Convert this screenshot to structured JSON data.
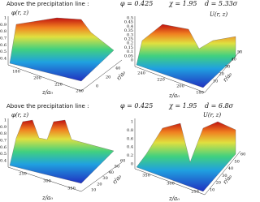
{
  "panels": [
    {
      "heading": {
        "text": "Above the precipitation line :",
        "phi": "φ = 0.425",
        "chi": "χ = 1.95",
        "d": "d = 5.33σ"
      },
      "left": {
        "label": "φ(r, z)",
        "vticks": [
          "1",
          "0.9",
          "0.8",
          "0.7",
          "0.6",
          "0.5",
          "0.4"
        ],
        "zticks": [
          "180",
          "200",
          "220",
          "240"
        ],
        "rticks": [
          "0",
          "20",
          "40"
        ],
        "zlabel": "z/a₀",
        "rlabel": "r/a₀"
      },
      "right": {
        "label": "U(r, z)",
        "vticks": [
          "0.5",
          "0.45",
          "0.4",
          "0.35",
          "0.3",
          "0.25",
          "0.2",
          "0.15",
          "0.1",
          "0.05",
          "0"
        ],
        "zticks": [
          "240",
          "220",
          "200",
          "180"
        ],
        "rticks": [
          "10",
          "20",
          "30",
          "40",
          "50"
        ],
        "zlabel": "z/a₀",
        "rlabel": "r/a₀"
      }
    },
    {
      "heading": {
        "text": "Above the precipitation line :",
        "phi": "φ = 0.425",
        "chi": "χ = 1.95",
        "d": "d = 6.8σ"
      },
      "left": {
        "label": "φ(r, z)",
        "vticks": [
          "1",
          "0.9",
          "0.8",
          "0.7",
          "0.6",
          "0.5",
          "0.4"
        ],
        "zticks": [
          "250",
          "300",
          "350"
        ],
        "rticks": [
          "10",
          "20",
          "30",
          "40",
          "50",
          "60"
        ],
        "zlabel": "z/a₀",
        "rlabel": "r/a₀"
      },
      "right": {
        "label": "U(r, z)",
        "vticks": [
          "1",
          "0.8",
          "0.6",
          "0.4",
          "0.2",
          "0"
        ],
        "zticks": [
          "350",
          "300",
          "250"
        ],
        "rticks": [
          "10",
          "20",
          "30",
          "40",
          "50",
          "60"
        ],
        "zlabel": "z/a₀",
        "rlabel": "r/a₀"
      }
    }
  ]
}
